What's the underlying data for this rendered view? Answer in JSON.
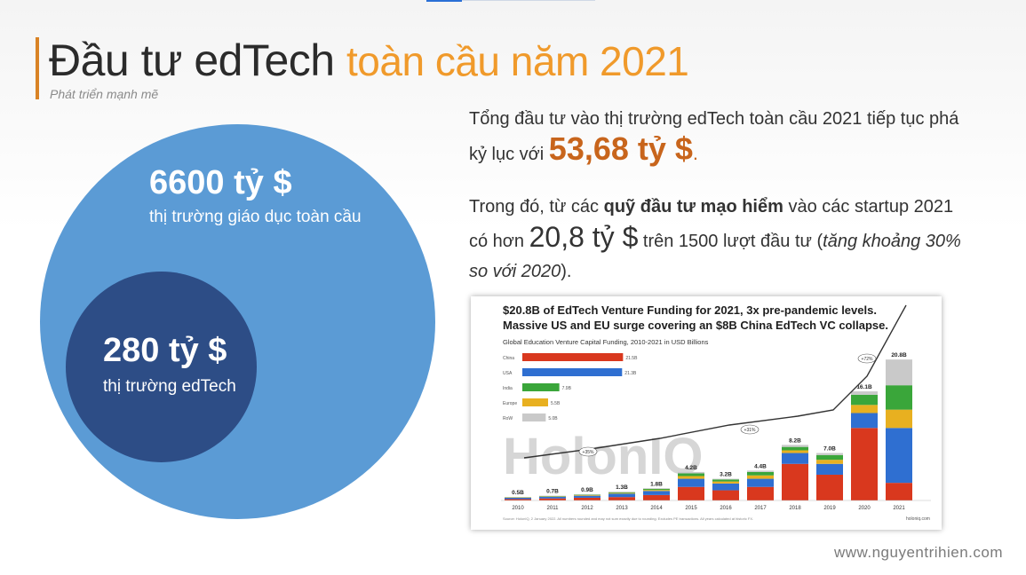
{
  "slide": {
    "title_part1": "Đầu tư edTech",
    "title_part2": "toàn cầu năm 2021",
    "subtitle": "Phát triển mạnh mẽ"
  },
  "circles": {
    "outer_value": "6600 tỷ $",
    "outer_label": "thị trường giáo dục toàn cầu",
    "inner_value": "280 tỷ $",
    "inner_label": "thị trường edTech"
  },
  "text": {
    "p1_a": "Tổng đầu tư vào thị trường edTech toàn cầu 2021 tiếp tục phá kỷ lục với ",
    "p1_highlight": "53,68 tỷ $",
    "p1_end": ".",
    "p2_a": "Trong đó, từ các ",
    "p2_bold": "quỹ đầu tư mạo hiểm",
    "p2_b": " vào các startup 2021 có hơn ",
    "p2_big": "20,8 tỷ $",
    "p2_c": " trên 1500 lượt đầu tư (",
    "p2_italic": "tăng khoảng 30% so với 2020",
    "p2_end": ")."
  },
  "footer": "www.nguyentrihien.com",
  "colors": {
    "accent_orange": "#f09a2b",
    "highlight_orange": "#c8651c",
    "outer_circle": "#5b9bd5",
    "inner_circle": "#2d4d86"
  },
  "chart_data": {
    "type": "bar",
    "title": "$20.8B of EdTech Venture Funding for 2021, 3x pre-pandemic levels. Massive US and EU surge covering an $8B China EdTech VC collapse.",
    "subtitle": "Global Education Venture Capital Funding, 2010-2021 in USD Billions",
    "watermark": "HolonIQ",
    "categories": [
      "2010",
      "2011",
      "2012",
      "2013",
      "2014",
      "2015",
      "2016",
      "2017",
      "2018",
      "2019",
      "2020",
      "2021"
    ],
    "totals": [
      0.5,
      0.7,
      0.9,
      1.3,
      1.8,
      4.2,
      3.2,
      4.4,
      8.2,
      7.0,
      16.1,
      20.8
    ],
    "total_labels": [
      "0.5B",
      "0.7B",
      "0.9B",
      "1.3B",
      "1.8B",
      "4.2B",
      "3.2B",
      "4.4B",
      "8.2B",
      "7.0B",
      "16.1B",
      "20.8B"
    ],
    "series": [
      {
        "name": "China",
        "color": "#d9381e",
        "values": [
          0.2,
          0.3,
          0.4,
          0.5,
          0.8,
          2.0,
          1.5,
          2.0,
          5.4,
          3.8,
          10.7,
          2.6
        ]
      },
      {
        "name": "USA",
        "color": "#2f6fd1",
        "values": [
          0.2,
          0.25,
          0.3,
          0.5,
          0.6,
          1.2,
          1.0,
          1.2,
          1.6,
          1.6,
          2.2,
          8.1
        ]
      },
      {
        "name": "Europe",
        "color": "#e8b020",
        "values": [
          0.05,
          0.05,
          0.1,
          0.1,
          0.15,
          0.4,
          0.3,
          0.5,
          0.4,
          0.6,
          1.2,
          2.7
        ]
      },
      {
        "name": "India",
        "color": "#3aa63a",
        "values": [
          0.03,
          0.05,
          0.05,
          0.1,
          0.15,
          0.4,
          0.3,
          0.5,
          0.5,
          0.7,
          1.5,
          3.6
        ]
      },
      {
        "name": "RoW",
        "color": "#c9c9c9",
        "values": [
          0.02,
          0.05,
          0.05,
          0.1,
          0.1,
          0.2,
          0.1,
          0.2,
          0.3,
          0.3,
          0.5,
          3.8
        ]
      }
    ],
    "inset_bars": [
      {
        "label": "China",
        "value": 21.5,
        "text": "21.5B",
        "color": "#d9381e"
      },
      {
        "label": "USA",
        "value": 21.3,
        "text": "21.3B",
        "color": "#2f6fd1"
      },
      {
        "label": "India",
        "value": 7.9,
        "text": "7.9B",
        "color": "#3aa63a"
      },
      {
        "label": "Europe",
        "value": 5.5,
        "text": "5.5B",
        "color": "#e8b020"
      },
      {
        "label": "RoW",
        "value": 5.0,
        "text": "5.0B",
        "color": "#c9c9c9"
      }
    ],
    "trend_markers": [
      {
        "label": "+35%"
      },
      {
        "label": "+31%"
      },
      {
        "label": "+72%"
      }
    ],
    "source_note": "Source: HolonIQ, 2 January 2022. All numbers rounded and may not sum exactly due to rounding. Excludes PE transactions. All years calculated at historic FX.",
    "brand": "holoniq.com",
    "ylim": [
      0,
      22
    ]
  }
}
